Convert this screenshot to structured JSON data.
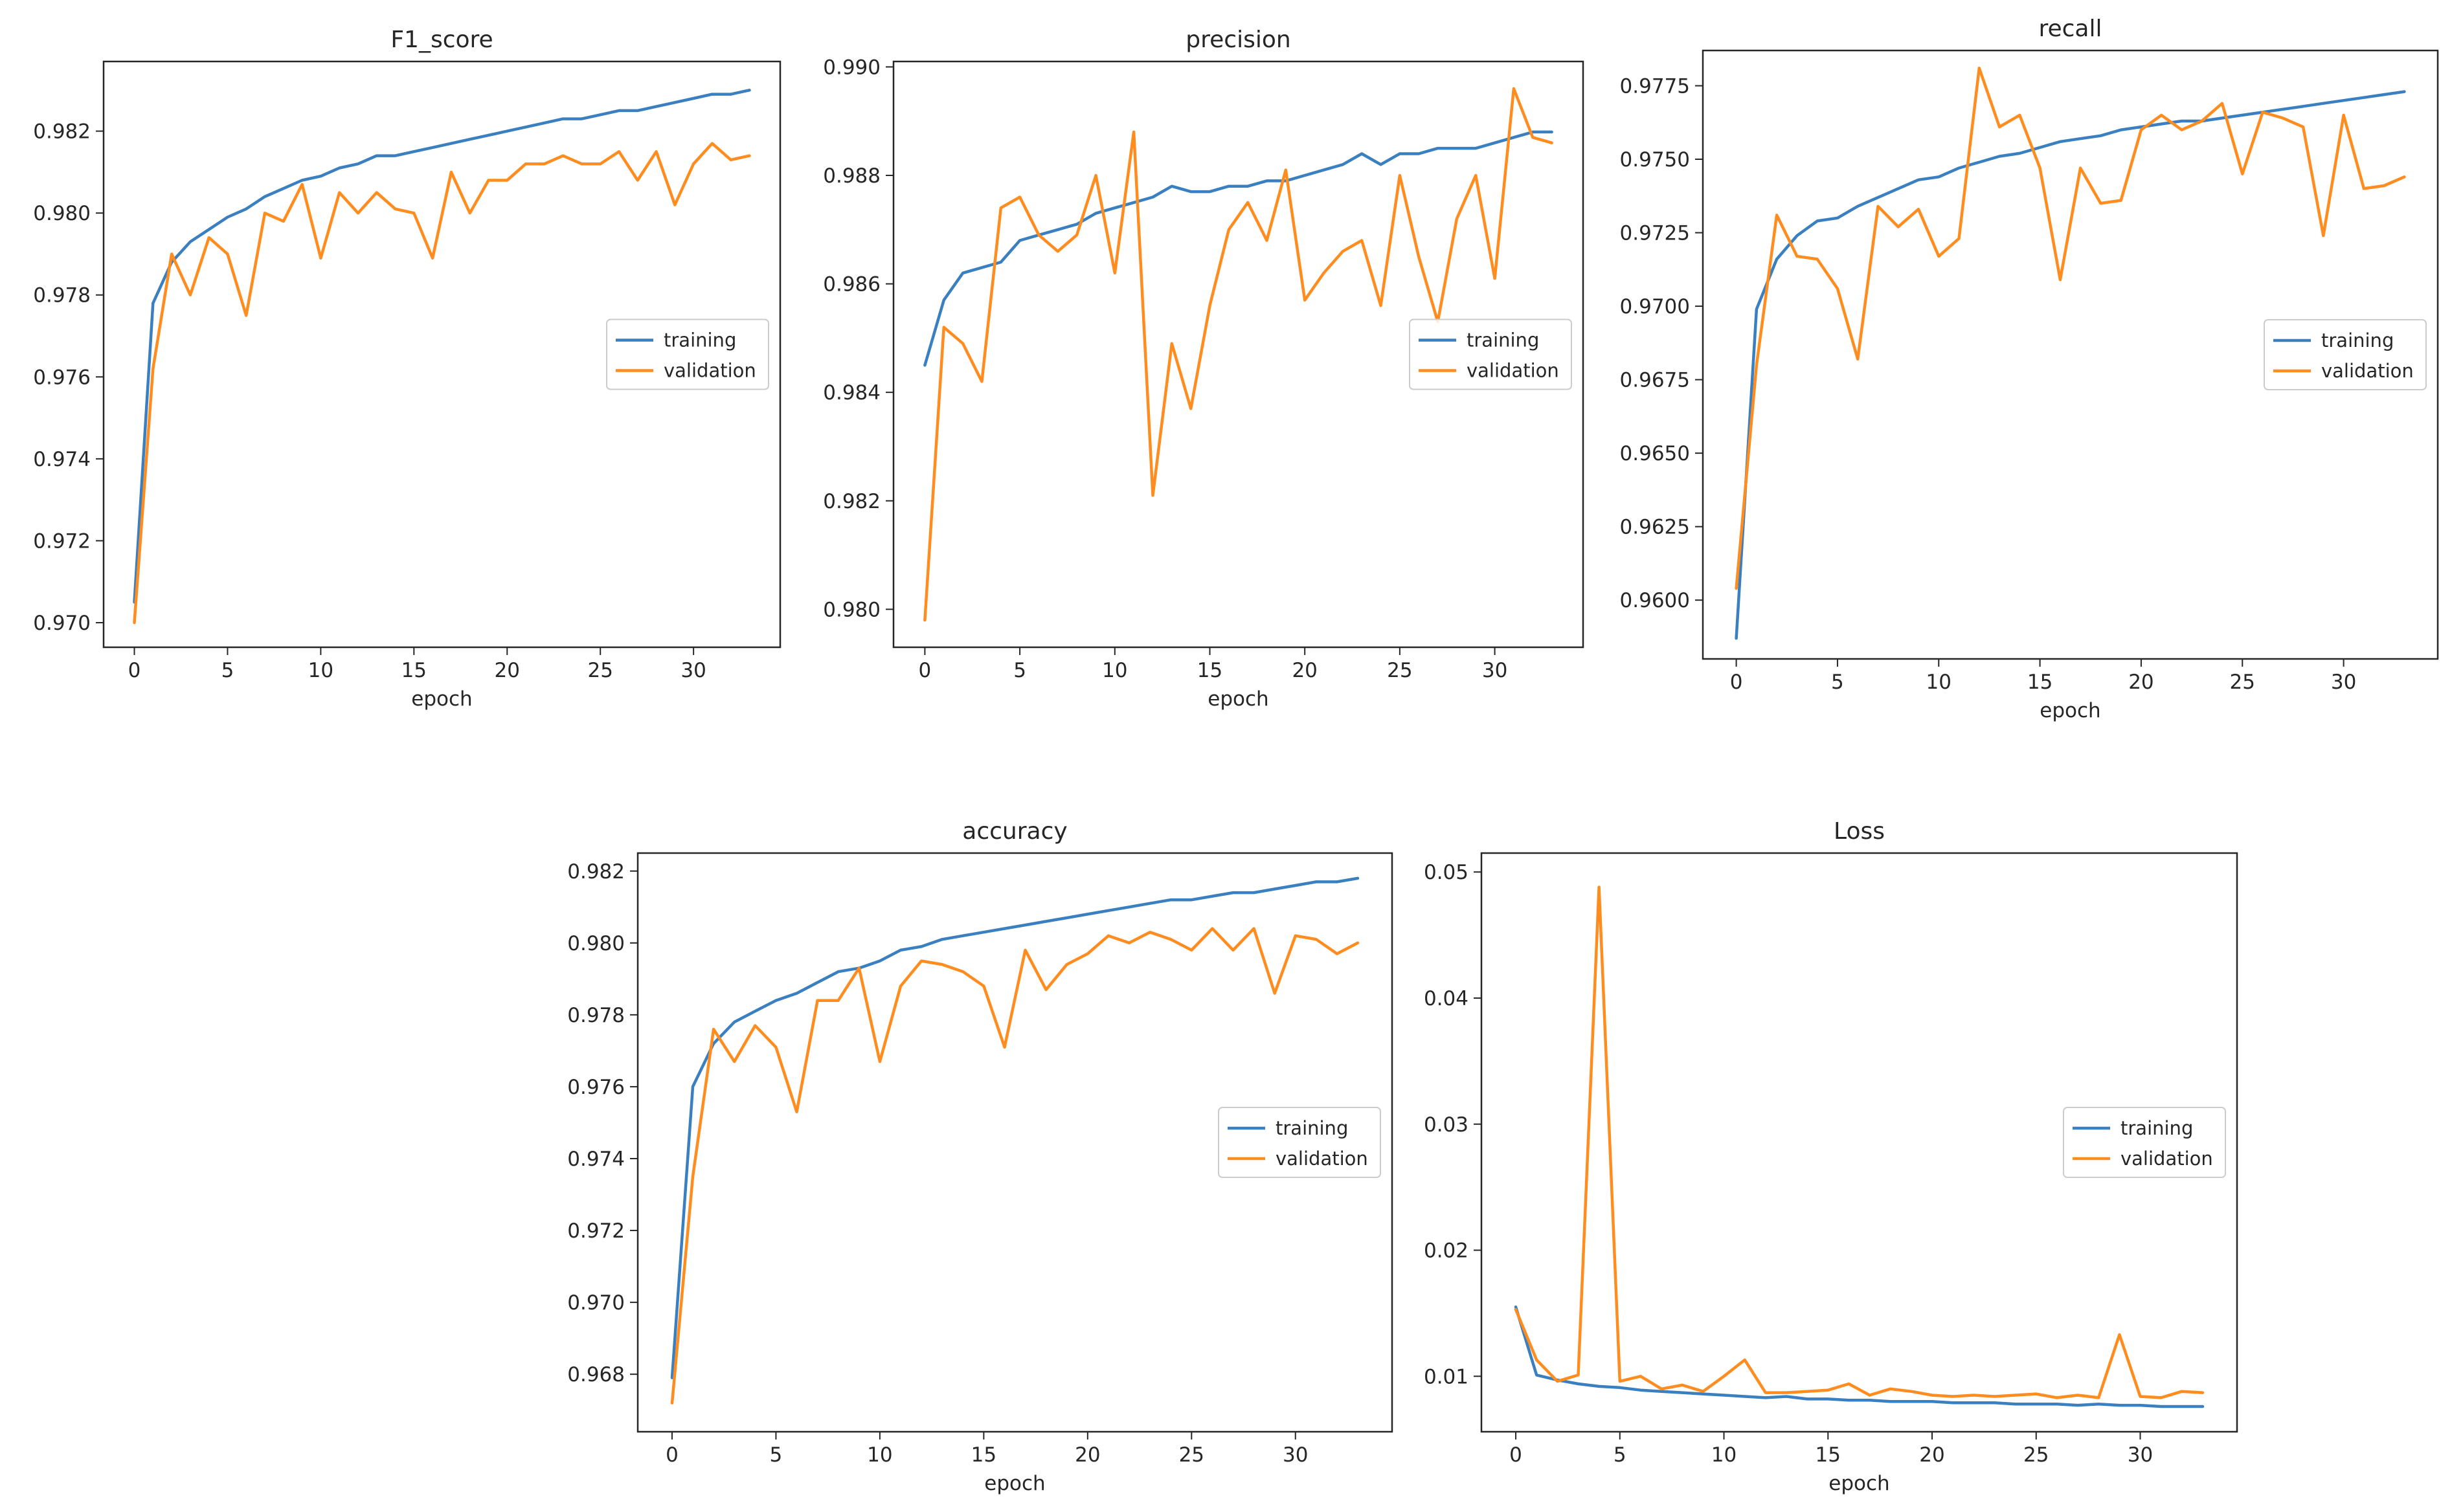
{
  "colors": {
    "training": "#3a7fc0",
    "validation": "#ff8c1f",
    "axis": "#262626"
  },
  "chart_data": [
    {
      "type": "line",
      "title": "F1_score",
      "xlabel": "epoch",
      "ylabel": "",
      "xlim": [
        -1.65,
        34.65
      ],
      "ylim": [
        0.9694,
        0.9837
      ],
      "xticks": [
        0,
        5,
        10,
        15,
        20,
        25,
        30
      ],
      "yticks": [
        0.97,
        0.972,
        0.974,
        0.976,
        0.978,
        0.98,
        0.982
      ],
      "ytick_labels": [
        "0.970",
        "0.972",
        "0.974",
        "0.976",
        "0.978",
        "0.980",
        "0.982"
      ],
      "legend": "center-right",
      "grid": false,
      "x": [
        0,
        1,
        2,
        3,
        4,
        5,
        6,
        7,
        8,
        9,
        10,
        11,
        12,
        13,
        14,
        15,
        16,
        17,
        18,
        19,
        20,
        21,
        22,
        23,
        24,
        25,
        26,
        27,
        28,
        29,
        30,
        31,
        32,
        33
      ],
      "series": [
        {
          "name": "training",
          "color": "#3a7fc0",
          "values": [
            0.9705,
            0.9778,
            0.9788,
            0.9793,
            0.9796,
            0.9799,
            0.9801,
            0.9804,
            0.9806,
            0.9808,
            0.9809,
            0.9811,
            0.9812,
            0.9814,
            0.9814,
            0.9815,
            0.9816,
            0.9817,
            0.9818,
            0.9819,
            0.982,
            0.9821,
            0.9822,
            0.9823,
            0.9823,
            0.9824,
            0.9825,
            0.9825,
            0.9826,
            0.9827,
            0.9828,
            0.9829,
            0.9829,
            0.983
          ]
        },
        {
          "name": "validation",
          "color": "#ff8c1f",
          "values": [
            0.97,
            0.9762,
            0.979,
            0.978,
            0.9794,
            0.979,
            0.9775,
            0.98,
            0.9798,
            0.9807,
            0.9789,
            0.9805,
            0.98,
            0.9805,
            0.9801,
            0.98,
            0.9789,
            0.981,
            0.98,
            0.9808,
            0.9808,
            0.9812,
            0.9812,
            0.9814,
            0.9812,
            0.9812,
            0.9815,
            0.9808,
            0.9815,
            0.9802,
            0.9812,
            0.9817,
            0.9813,
            0.9814
          ]
        }
      ]
    },
    {
      "type": "line",
      "title": "precision",
      "xlabel": "epoch",
      "ylabel": "",
      "xlim": [
        -1.65,
        34.65
      ],
      "ylim": [
        0.9793,
        0.9901
      ],
      "xticks": [
        0,
        5,
        10,
        15,
        20,
        25,
        30
      ],
      "yticks": [
        0.98,
        0.982,
        0.984,
        0.986,
        0.988,
        0.99
      ],
      "ytick_labels": [
        "0.980",
        "0.982",
        "0.984",
        "0.986",
        "0.988",
        "0.990"
      ],
      "legend": "center-right",
      "grid": false,
      "x": [
        0,
        1,
        2,
        3,
        4,
        5,
        6,
        7,
        8,
        9,
        10,
        11,
        12,
        13,
        14,
        15,
        16,
        17,
        18,
        19,
        20,
        21,
        22,
        23,
        24,
        25,
        26,
        27,
        28,
        29,
        30,
        31,
        32,
        33
      ],
      "series": [
        {
          "name": "training",
          "color": "#3a7fc0",
          "values": [
            0.9845,
            0.9857,
            0.9862,
            0.9863,
            0.9864,
            0.9868,
            0.9869,
            0.987,
            0.9871,
            0.9873,
            0.9874,
            0.9875,
            0.9876,
            0.9878,
            0.9877,
            0.9877,
            0.9878,
            0.9878,
            0.9879,
            0.9879,
            0.988,
            0.9881,
            0.9882,
            0.9884,
            0.9882,
            0.9884,
            0.9884,
            0.9885,
            0.9885,
            0.9885,
            0.9886,
            0.9887,
            0.9888,
            0.9888
          ]
        },
        {
          "name": "validation",
          "color": "#ff8c1f",
          "values": [
            0.9798,
            0.9852,
            0.9849,
            0.9842,
            0.9874,
            0.9876,
            0.9869,
            0.9866,
            0.9869,
            0.988,
            0.9862,
            0.9888,
            0.9821,
            0.9849,
            0.9837,
            0.9856,
            0.987,
            0.9875,
            0.9868,
            0.9881,
            0.9857,
            0.9862,
            0.9866,
            0.9868,
            0.9856,
            0.988,
            0.9865,
            0.9853,
            0.9872,
            0.988,
            0.9861,
            0.9896,
            0.9887,
            0.9886
          ]
        }
      ]
    },
    {
      "type": "line",
      "title": "recall",
      "xlabel": "epoch",
      "ylabel": "",
      "xlim": [
        -1.65,
        34.65
      ],
      "ylim": [
        0.958,
        0.9787
      ],
      "xticks": [
        0,
        5,
        10,
        15,
        20,
        25,
        30
      ],
      "yticks": [
        0.96,
        0.9625,
        0.965,
        0.9675,
        0.97,
        0.9725,
        0.975,
        0.9775
      ],
      "ytick_labels": [
        "0.9600",
        "0.9625",
        "0.9650",
        "0.9675",
        "0.9700",
        "0.9725",
        "0.9750",
        "0.9775"
      ],
      "legend": "center-right",
      "grid": false,
      "x": [
        0,
        1,
        2,
        3,
        4,
        5,
        6,
        7,
        8,
        9,
        10,
        11,
        12,
        13,
        14,
        15,
        16,
        17,
        18,
        19,
        20,
        21,
        22,
        23,
        24,
        25,
        26,
        27,
        28,
        29,
        30,
        31,
        32,
        33
      ],
      "series": [
        {
          "name": "training",
          "color": "#3a7fc0",
          "values": [
            0.9587,
            0.9699,
            0.9716,
            0.9724,
            0.9729,
            0.973,
            0.9734,
            0.9737,
            0.974,
            0.9743,
            0.9744,
            0.9747,
            0.9749,
            0.9751,
            0.9752,
            0.9754,
            0.9756,
            0.9757,
            0.9758,
            0.976,
            0.9761,
            0.9762,
            0.9763,
            0.9763,
            0.9764,
            0.9765,
            0.9766,
            0.9767,
            0.9768,
            0.9769,
            0.977,
            0.9771,
            0.9772,
            0.9773
          ]
        },
        {
          "name": "validation",
          "color": "#ff8c1f",
          "values": [
            0.9604,
            0.968,
            0.9731,
            0.9717,
            0.9716,
            0.9706,
            0.9682,
            0.9734,
            0.9727,
            0.9733,
            0.9717,
            0.9723,
            0.9781,
            0.9761,
            0.9765,
            0.9747,
            0.9709,
            0.9747,
            0.9735,
            0.9736,
            0.976,
            0.9765,
            0.976,
            0.9763,
            0.9769,
            0.9745,
            0.9766,
            0.9764,
            0.9761,
            0.9724,
            0.9765,
            0.974,
            0.9741,
            0.9744
          ]
        }
      ]
    },
    {
      "type": "line",
      "title": "accuracy",
      "xlabel": "epoch",
      "ylabel": "",
      "xlim": [
        -1.65,
        34.65
      ],
      "ylim": [
        0.9664,
        0.9825
      ],
      "xticks": [
        0,
        5,
        10,
        15,
        20,
        25,
        30
      ],
      "yticks": [
        0.968,
        0.97,
        0.972,
        0.974,
        0.976,
        0.978,
        0.98,
        0.982
      ],
      "ytick_labels": [
        "0.968",
        "0.970",
        "0.972",
        "0.974",
        "0.976",
        "0.978",
        "0.980",
        "0.982"
      ],
      "legend": "center-right",
      "grid": false,
      "x": [
        0,
        1,
        2,
        3,
        4,
        5,
        6,
        7,
        8,
        9,
        10,
        11,
        12,
        13,
        14,
        15,
        16,
        17,
        18,
        19,
        20,
        21,
        22,
        23,
        24,
        25,
        26,
        27,
        28,
        29,
        30,
        31,
        32,
        33
      ],
      "series": [
        {
          "name": "training",
          "color": "#3a7fc0",
          "values": [
            0.9679,
            0.976,
            0.9772,
            0.9778,
            0.9781,
            0.9784,
            0.9786,
            0.9789,
            0.9792,
            0.9793,
            0.9795,
            0.9798,
            0.9799,
            0.9801,
            0.9802,
            0.9803,
            0.9804,
            0.9805,
            0.9806,
            0.9807,
            0.9808,
            0.9809,
            0.981,
            0.9811,
            0.9812,
            0.9812,
            0.9813,
            0.9814,
            0.9814,
            0.9815,
            0.9816,
            0.9817,
            0.9817,
            0.9818
          ]
        },
        {
          "name": "validation",
          "color": "#ff8c1f",
          "values": [
            0.9672,
            0.9735,
            0.9776,
            0.9767,
            0.9777,
            0.9771,
            0.9753,
            0.9784,
            0.9784,
            0.9793,
            0.9767,
            0.9788,
            0.9795,
            0.9794,
            0.9792,
            0.9788,
            0.9771,
            0.9798,
            0.9787,
            0.9794,
            0.9797,
            0.9802,
            0.98,
            0.9803,
            0.9801,
            0.9798,
            0.9804,
            0.9798,
            0.9804,
            0.9786,
            0.9802,
            0.9801,
            0.9797,
            0.98
          ]
        }
      ]
    },
    {
      "type": "line",
      "title": "Loss",
      "xlabel": "epoch",
      "ylabel": "",
      "xlim": [
        -1.65,
        34.65
      ],
      "ylim": [
        0.0056,
        0.0515
      ],
      "xticks": [
        0,
        5,
        10,
        15,
        20,
        25,
        30
      ],
      "yticks": [
        0.01,
        0.02,
        0.03,
        0.04,
        0.05
      ],
      "ytick_labels": [
        "0.01",
        "0.02",
        "0.03",
        "0.04",
        "0.05"
      ],
      "legend": "center-right",
      "grid": false,
      "x": [
        0,
        1,
        2,
        3,
        4,
        5,
        6,
        7,
        8,
        9,
        10,
        11,
        12,
        13,
        14,
        15,
        16,
        17,
        18,
        19,
        20,
        21,
        22,
        23,
        24,
        25,
        26,
        27,
        28,
        29,
        30,
        31,
        32,
        33
      ],
      "series": [
        {
          "name": "training",
          "color": "#3a7fc0",
          "values": [
            0.0155,
            0.0101,
            0.0097,
            0.0094,
            0.0092,
            0.0091,
            0.0089,
            0.0088,
            0.0087,
            0.0086,
            0.0085,
            0.0084,
            0.0083,
            0.0084,
            0.0082,
            0.0082,
            0.0081,
            0.0081,
            0.008,
            0.008,
            0.008,
            0.0079,
            0.0079,
            0.0079,
            0.0078,
            0.0078,
            0.0078,
            0.0077,
            0.0078,
            0.0077,
            0.0077,
            0.0076,
            0.0076,
            0.0076
          ]
        },
        {
          "name": "validation",
          "color": "#ff8c1f",
          "values": [
            0.0153,
            0.0113,
            0.0096,
            0.0101,
            0.0488,
            0.0096,
            0.01,
            0.009,
            0.0093,
            0.0088,
            0.01,
            0.0113,
            0.0087,
            0.0087,
            0.0088,
            0.0089,
            0.0094,
            0.0085,
            0.009,
            0.0088,
            0.0085,
            0.0084,
            0.0085,
            0.0084,
            0.0085,
            0.0086,
            0.0083,
            0.0085,
            0.0083,
            0.0133,
            0.0084,
            0.0083,
            0.0088,
            0.0087
          ]
        }
      ]
    }
  ]
}
